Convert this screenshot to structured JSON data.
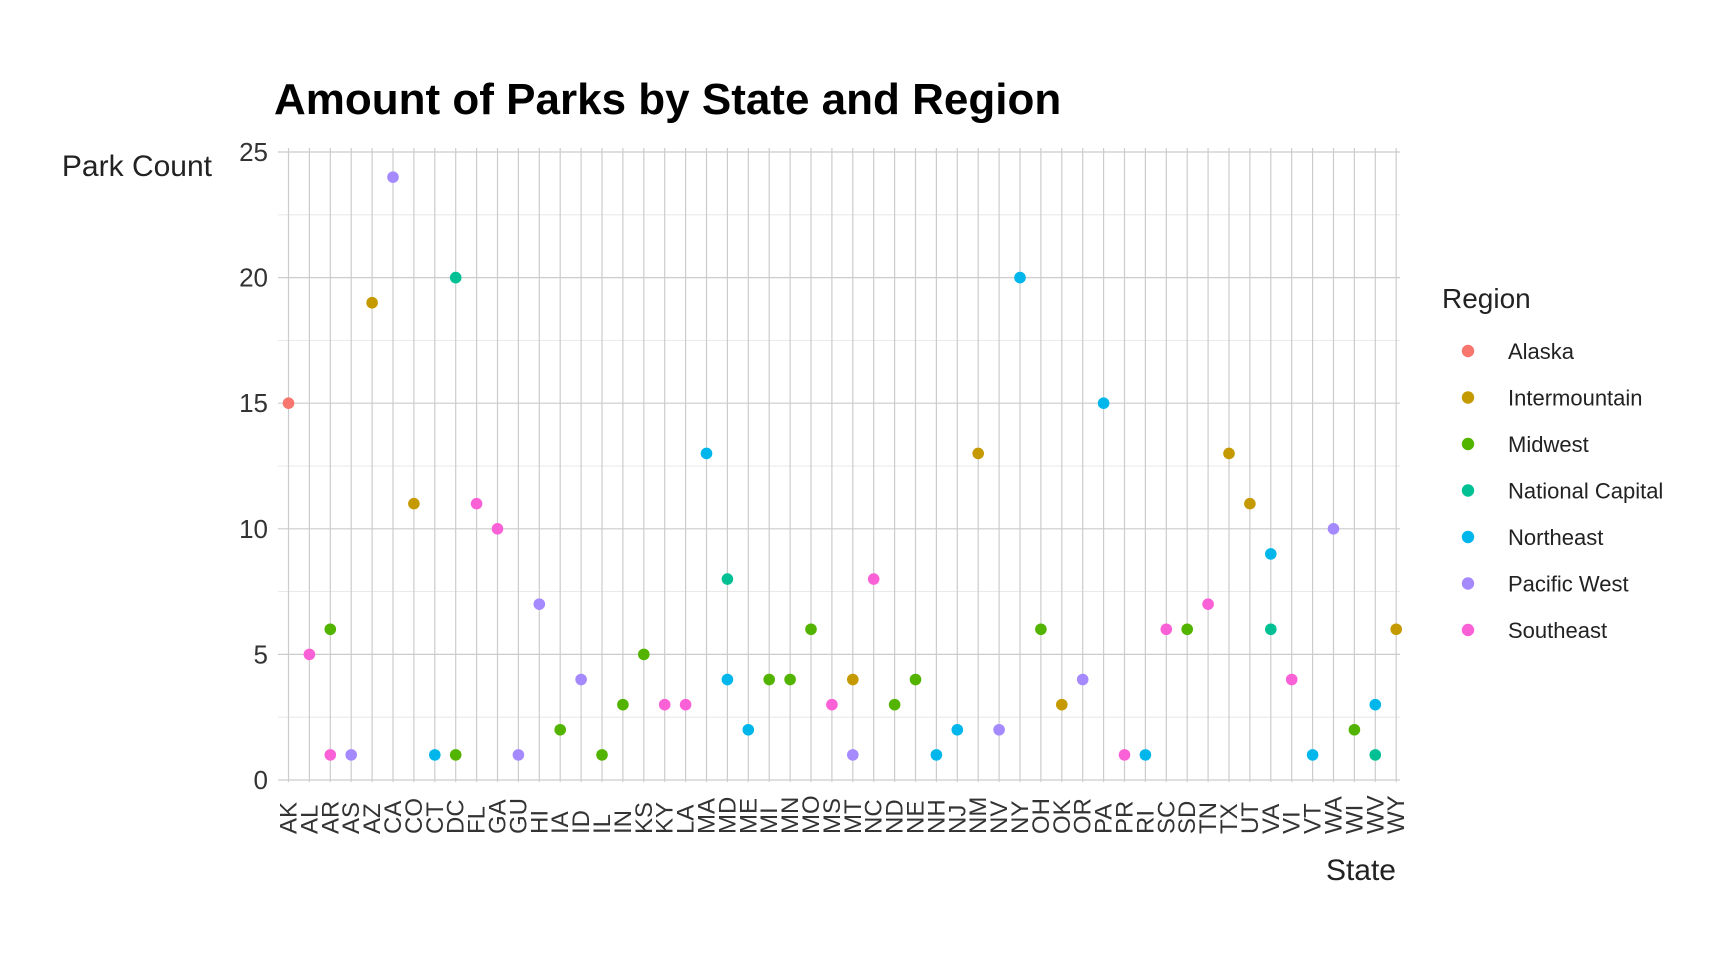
{
  "chart_data": {
    "type": "scatter",
    "title": "Amount of Parks by State and Region",
    "xlabel": "State",
    "ylabel": "Park Count",
    "ylim": [
      0,
      25
    ],
    "yticks": [
      0,
      5,
      10,
      15,
      20,
      25
    ],
    "grid": true,
    "legend": {
      "title": "Region",
      "placement": "right"
    },
    "regions": [
      {
        "name": "Alaska",
        "color": "#F8766D"
      },
      {
        "name": "Intermountain",
        "color": "#C49A00"
      },
      {
        "name": "Midwest",
        "color": "#53B400"
      },
      {
        "name": "National Capital",
        "color": "#00C094"
      },
      {
        "name": "Northeast",
        "color": "#00B6EB"
      },
      {
        "name": "Pacific West",
        "color": "#A58AFF"
      },
      {
        "name": "Southeast",
        "color": "#FB61D7"
      }
    ],
    "categories": [
      "AK",
      "AL",
      "AR",
      "AS",
      "AZ",
      "CA",
      "CO",
      "CT",
      "DC",
      "FL",
      "GA",
      "GU",
      "HI",
      "IA",
      "ID",
      "IL",
      "IN",
      "KS",
      "KY",
      "LA",
      "MA",
      "MD",
      "ME",
      "MI",
      "MN",
      "MO",
      "MS",
      "MT",
      "NC",
      "ND",
      "NE",
      "NH",
      "NJ",
      "NM",
      "NV",
      "NY",
      "OH",
      "OK",
      "OR",
      "PA",
      "PR",
      "RI",
      "SC",
      "SD",
      "TN",
      "TX",
      "UT",
      "VA",
      "VI",
      "VT",
      "WA",
      "WI",
      "WV",
      "WY"
    ],
    "points": [
      {
        "state": "AK",
        "region": "Alaska",
        "count": 15
      },
      {
        "state": "AL",
        "region": "Southeast",
        "count": 5
      },
      {
        "state": "AR",
        "region": "Southeast",
        "count": 1
      },
      {
        "state": "AR",
        "region": "Midwest",
        "count": 6
      },
      {
        "state": "AS",
        "region": "Pacific West",
        "count": 1
      },
      {
        "state": "AZ",
        "region": "Intermountain",
        "count": 19
      },
      {
        "state": "CA",
        "region": "Pacific West",
        "count": 24
      },
      {
        "state": "CO",
        "region": "Intermountain",
        "count": 11
      },
      {
        "state": "CT",
        "region": "Northeast",
        "count": 1
      },
      {
        "state": "DC",
        "region": "National Capital",
        "count": 20
      },
      {
        "state": "DC",
        "region": "Midwest",
        "count": 1
      },
      {
        "state": "FL",
        "region": "Southeast",
        "count": 11
      },
      {
        "state": "GA",
        "region": "Southeast",
        "count": 10
      },
      {
        "state": "GU",
        "region": "Pacific West",
        "count": 1
      },
      {
        "state": "HI",
        "region": "Pacific West",
        "count": 7
      },
      {
        "state": "IA",
        "region": "Midwest",
        "count": 2
      },
      {
        "state": "ID",
        "region": "Pacific West",
        "count": 4
      },
      {
        "state": "IL",
        "region": "Midwest",
        "count": 1
      },
      {
        "state": "IN",
        "region": "Midwest",
        "count": 3
      },
      {
        "state": "KS",
        "region": "Midwest",
        "count": 5
      },
      {
        "state": "KY",
        "region": "Southeast",
        "count": 3
      },
      {
        "state": "LA",
        "region": "Southeast",
        "count": 3
      },
      {
        "state": "MA",
        "region": "Northeast",
        "count": 13
      },
      {
        "state": "MD",
        "region": "National Capital",
        "count": 8
      },
      {
        "state": "MD",
        "region": "Northeast",
        "count": 4
      },
      {
        "state": "ME",
        "region": "Northeast",
        "count": 2
      },
      {
        "state": "MI",
        "region": "Midwest",
        "count": 4
      },
      {
        "state": "MN",
        "region": "Midwest",
        "count": 4
      },
      {
        "state": "MO",
        "region": "Midwest",
        "count": 6
      },
      {
        "state": "MS",
        "region": "Southeast",
        "count": 3
      },
      {
        "state": "MT",
        "region": "Intermountain",
        "count": 4
      },
      {
        "state": "MT",
        "region": "Pacific West",
        "count": 1
      },
      {
        "state": "NC",
        "region": "Southeast",
        "count": 8
      },
      {
        "state": "ND",
        "region": "Midwest",
        "count": 3
      },
      {
        "state": "NE",
        "region": "Midwest",
        "count": 4
      },
      {
        "state": "NH",
        "region": "Northeast",
        "count": 1
      },
      {
        "state": "NJ",
        "region": "Northeast",
        "count": 2
      },
      {
        "state": "NM",
        "region": "Intermountain",
        "count": 13
      },
      {
        "state": "NV",
        "region": "Pacific West",
        "count": 2
      },
      {
        "state": "NY",
        "region": "Northeast",
        "count": 20
      },
      {
        "state": "OH",
        "region": "Midwest",
        "count": 6
      },
      {
        "state": "OK",
        "region": "Intermountain",
        "count": 3
      },
      {
        "state": "OR",
        "region": "Pacific West",
        "count": 4
      },
      {
        "state": "PA",
        "region": "Northeast",
        "count": 15
      },
      {
        "state": "PR",
        "region": "Southeast",
        "count": 1
      },
      {
        "state": "RI",
        "region": "Northeast",
        "count": 1
      },
      {
        "state": "SC",
        "region": "Southeast",
        "count": 6
      },
      {
        "state": "SD",
        "region": "Midwest",
        "count": 6
      },
      {
        "state": "TN",
        "region": "Southeast",
        "count": 7
      },
      {
        "state": "TX",
        "region": "Intermountain",
        "count": 13
      },
      {
        "state": "UT",
        "region": "Intermountain",
        "count": 11
      },
      {
        "state": "VA",
        "region": "Northeast",
        "count": 9
      },
      {
        "state": "VA",
        "region": "National Capital",
        "count": 6
      },
      {
        "state": "VI",
        "region": "Southeast",
        "count": 4
      },
      {
        "state": "VT",
        "region": "Northeast",
        "count": 1
      },
      {
        "state": "WA",
        "region": "Pacific West",
        "count": 10
      },
      {
        "state": "WI",
        "region": "Midwest",
        "count": 2
      },
      {
        "state": "WV",
        "region": "Northeast",
        "count": 3
      },
      {
        "state": "WV",
        "region": "National Capital",
        "count": 1
      },
      {
        "state": "WY",
        "region": "Intermountain",
        "count": 6
      }
    ]
  }
}
